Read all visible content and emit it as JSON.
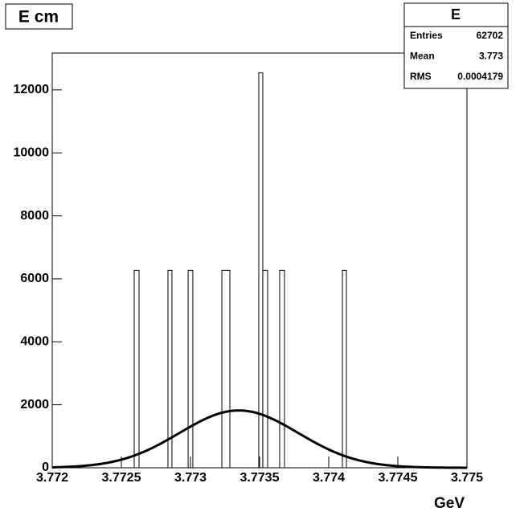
{
  "chart_data": {
    "type": "histogram",
    "title": "E cm",
    "x_label": "GeV",
    "bins": [
      3.772,
      3.772593,
      3.772628,
      3.772837,
      3.772866,
      3.772983,
      3.773017,
      3.773227,
      3.773285,
      3.773494,
      3.773523,
      3.773558,
      3.773645,
      3.77368,
      3.774099,
      3.774128,
      3.775
    ],
    "counts": [
      0,
      6270,
      0,
      6270,
      0,
      6270,
      0,
      6270,
      0,
      12540,
      6270,
      0,
      6270,
      0,
      6270,
      0
    ],
    "color": "#000000",
    "fit": {
      "constant": 1820,
      "mean": 3.77335,
      "sigma": 0.00043,
      "color": "#000000"
    },
    "xlim": [
      3.772,
      3.775
    ],
    "xticks": [
      3.772,
      3.7725,
      3.773,
      3.7735,
      3.774,
      3.7745,
      3.775
    ],
    "ylim": [
      0,
      13170
    ],
    "yticks": [
      0,
      2000,
      4000,
      6000,
      8000,
      10000,
      12000
    ],
    "stats": {
      "title": "E",
      "rows": [
        [
          "Entries",
          "62702"
        ],
        [
          "Mean",
          "3.773"
        ],
        [
          "RMS",
          "0.0004179"
        ]
      ]
    }
  }
}
